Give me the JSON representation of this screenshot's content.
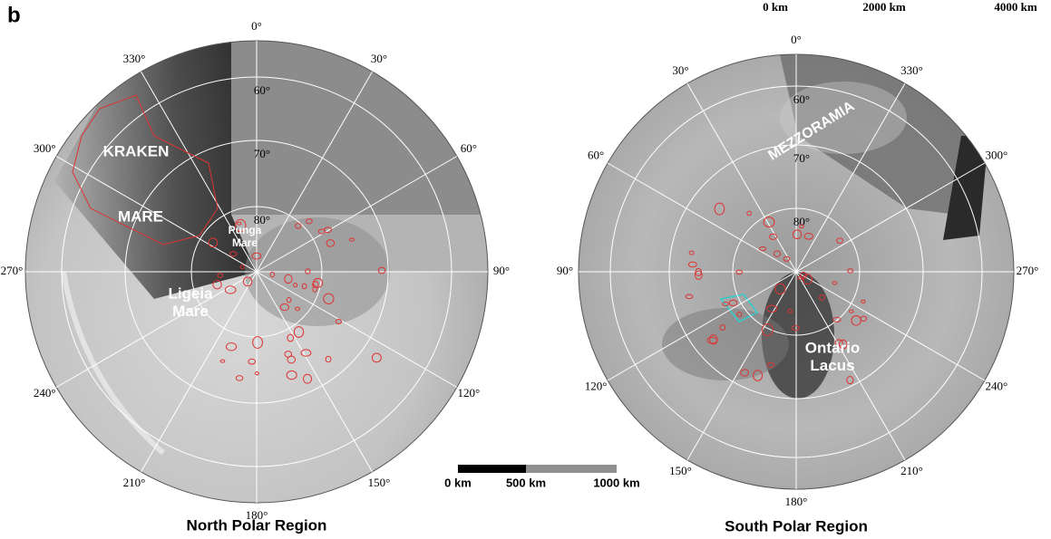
{
  "panel_label": "b",
  "top_scale": {
    "labels": [
      "0 km",
      "2000 km",
      "4000 km"
    ]
  },
  "bottom_scale": {
    "labels": [
      "0 km",
      "500 km",
      "1000 km"
    ]
  },
  "maps": [
    {
      "title": "North Polar Region",
      "longitude_labels": [
        "0°",
        "30°",
        "60°",
        "90°",
        "120°",
        "150°",
        "180°",
        "210°",
        "240°",
        "270°",
        "300°",
        "330°"
      ],
      "latitude_labels": [
        "60°",
        "70°",
        "80°"
      ],
      "features": [
        {
          "lines": [
            "KRAKEN"
          ]
        },
        {
          "lines": [
            "MARE"
          ]
        },
        {
          "lines": [
            "Punga",
            "Mare"
          ]
        },
        {
          "lines": [
            "Ligeia",
            "Mare"
          ]
        }
      ]
    },
    {
      "title": "South Polar Region",
      "longitude_labels": [
        "0°",
        "330°",
        "300°",
        "270°",
        "240°",
        "210°",
        "180°",
        "150°",
        "120°",
        "90°",
        "60°",
        "30°"
      ],
      "latitude_labels": [
        "60°",
        "70°",
        "80°"
      ],
      "features": [
        {
          "lines": [
            "MEZZORAMIA"
          ]
        },
        {
          "lines": [
            "Ontario",
            "Lacus"
          ]
        }
      ]
    }
  ]
}
